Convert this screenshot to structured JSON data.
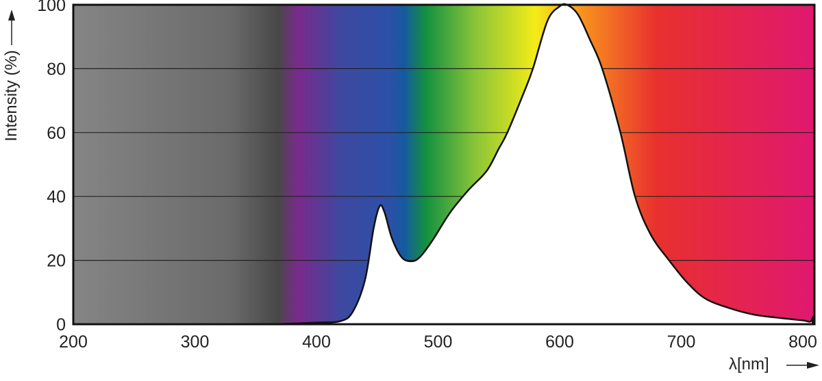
{
  "chart_data": {
    "type": "area",
    "title": "",
    "xlabel": "λ[nm]",
    "ylabel": "Intensity (%)",
    "xlim": [
      200,
      810
    ],
    "ylim": [
      0,
      100
    ],
    "x_ticks": [
      "200",
      "300",
      "400",
      "500",
      "600",
      "700",
      "800"
    ],
    "y_ticks": [
      "0",
      "20",
      "40",
      "60",
      "80",
      "100"
    ],
    "grid": "horizontal",
    "background": "visible light spectrum gradient",
    "series": [
      {
        "x": [
          365,
          400,
          420,
          430,
          440,
          447,
          452,
          456,
          462,
          470,
          478,
          485,
          495,
          510,
          525,
          540,
          550,
          557,
          570,
          578,
          590,
          600,
          606,
          615,
          625,
          635,
          650,
          662,
          675,
          690,
          705,
          720,
          740,
          760,
          780,
          800,
          806,
          808
        ],
        "y": [
          0,
          0.5,
          1,
          4,
          14,
          30,
          37,
          35,
          27,
          21,
          19.7,
          21,
          26,
          35,
          42,
          48,
          55,
          60,
          72,
          80,
          95,
          99.5,
          100,
          97,
          89,
          80,
          60,
          40,
          28,
          20,
          13,
          8,
          5,
          3,
          2,
          1.2,
          0.8,
          2
        ]
      }
    ],
    "spectrum_stops": [
      {
        "nm": 200,
        "color": "#858585"
      },
      {
        "nm": 330,
        "color": "#6a6a6a"
      },
      {
        "nm": 368,
        "color": "#484848"
      },
      {
        "nm": 385,
        "color": "#7a2a8c"
      },
      {
        "nm": 420,
        "color": "#3e48a0"
      },
      {
        "nm": 460,
        "color": "#2c50a8"
      },
      {
        "nm": 472,
        "color": "#145aa0"
      },
      {
        "nm": 490,
        "color": "#149040"
      },
      {
        "nm": 530,
        "color": "#88c438"
      },
      {
        "nm": 580,
        "color": "#f4ec18"
      },
      {
        "nm": 620,
        "color": "#f8901e"
      },
      {
        "nm": 680,
        "color": "#e8302e"
      },
      {
        "nm": 810,
        "color": "#e01870"
      }
    ]
  }
}
